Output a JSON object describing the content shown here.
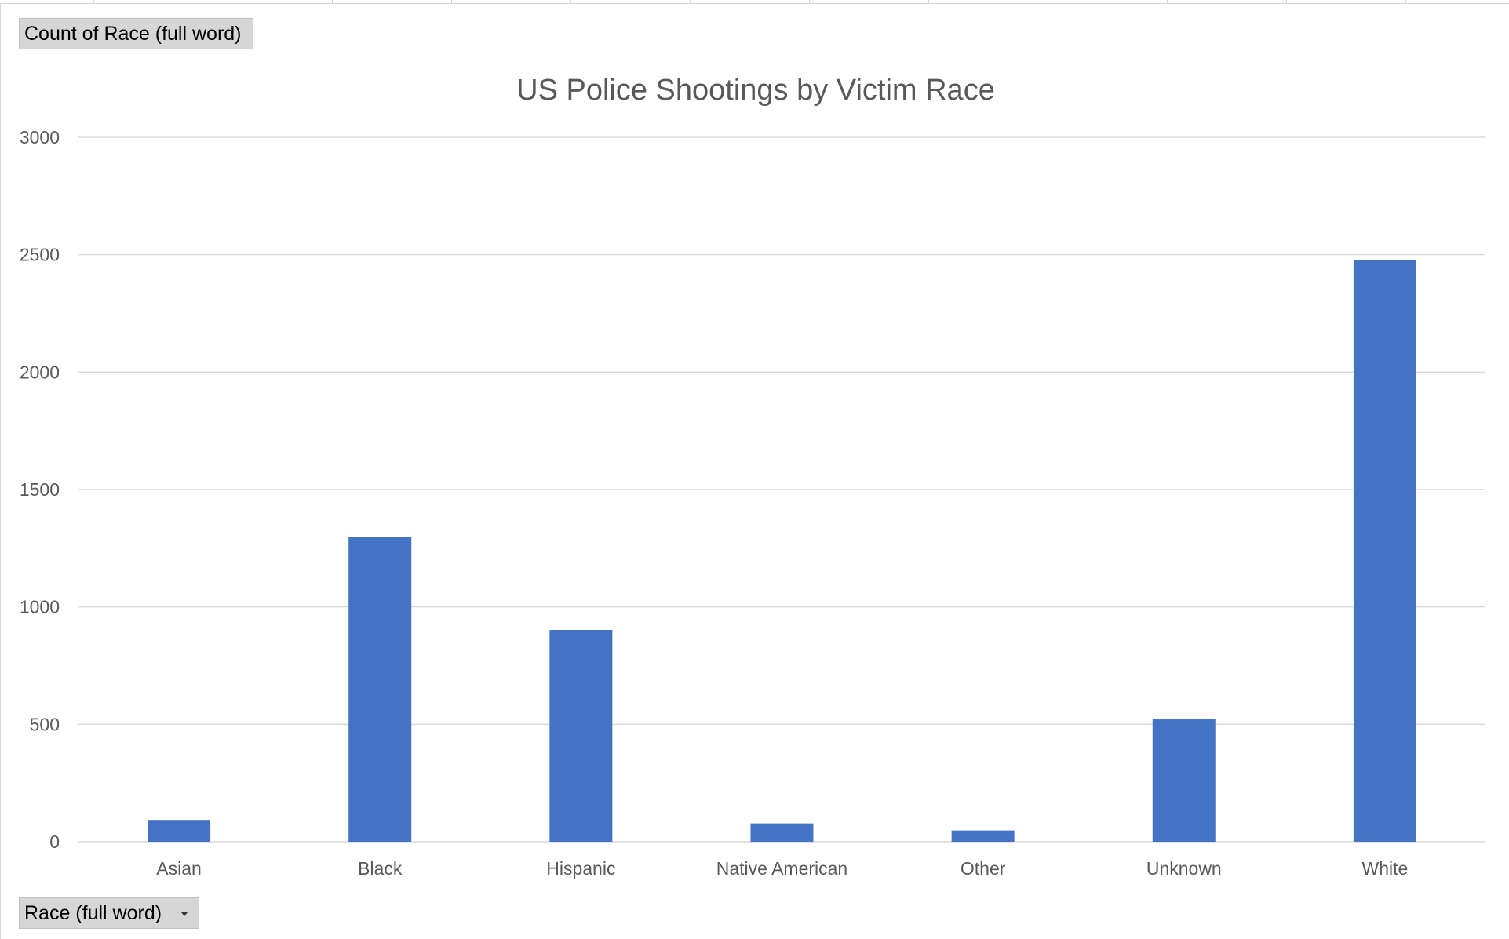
{
  "pivot": {
    "value_field_label": "Count of Race (full word)",
    "axis_field_label": "Race (full word)"
  },
  "colors": {
    "bar": "#4472C4",
    "gridline": "#d9d9d9",
    "text": "#595959"
  },
  "chart_data": {
    "type": "bar",
    "title": "US Police Shootings by Victim Race",
    "xlabel": "",
    "ylabel": "",
    "categories": [
      "Asian",
      "Black",
      "Hispanic",
      "Native American",
      "Other",
      "Unknown",
      "White"
    ],
    "values": [
      93,
      1298,
      902,
      78,
      48,
      521,
      2476
    ],
    "ylim": [
      0,
      3000
    ],
    "yticks": [
      0,
      500,
      1000,
      1500,
      2000,
      2500,
      3000
    ],
    "grid": true,
    "legend": "none"
  }
}
